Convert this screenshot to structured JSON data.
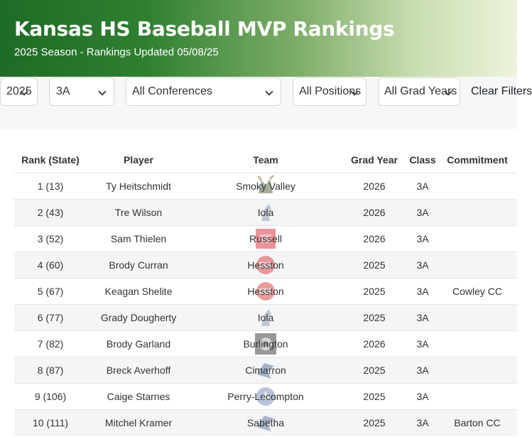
{
  "header": {
    "title": "Kansas HS Baseball MVP Rankings",
    "subtitle": "2025 Season - Rankings Updated 05/08/25"
  },
  "filters": {
    "year": "2025",
    "class": "3A",
    "conference": "All Conferences",
    "position": "All Positions",
    "grad_year": "All Grad Years",
    "clear_label": "Clear Filters"
  },
  "table": {
    "headers": [
      "Rank (State)",
      "Player",
      "Team",
      "Grad Year",
      "Class",
      "Commitment"
    ],
    "rows": [
      {
        "rank": "1 (13)",
        "player": "Ty Heitschmidt",
        "team": "Smoky Valley",
        "grad": "2026",
        "class": "3A",
        "commit": "",
        "logo": "viking-logo-icon"
      },
      {
        "rank": "2 (43)",
        "player": "Tre Wilson",
        "team": "Iola",
        "grad": "2026",
        "class": "3A",
        "commit": "",
        "logo": "mustang-logo-icon"
      },
      {
        "rank": "3 (52)",
        "player": "Sam Thielen",
        "team": "Russell",
        "grad": "2026",
        "class": "3A",
        "commit": "",
        "logo": "broncos-logo-icon"
      },
      {
        "rank": "4 (60)",
        "player": "Brody Curran",
        "team": "Hesston",
        "grad": "2025",
        "class": "3A",
        "commit": "",
        "logo": "swather-logo-icon"
      },
      {
        "rank": "5 (67)",
        "player": "Keagan Shelite",
        "team": "Hesston",
        "grad": "2025",
        "class": "3A",
        "commit": "Cowley CC",
        "logo": "swather-logo-icon"
      },
      {
        "rank": "6 (77)",
        "player": "Grady Dougherty",
        "team": "Iola",
        "grad": "2025",
        "class": "3A",
        "commit": "",
        "logo": "mustang-logo-icon"
      },
      {
        "rank": "7 (82)",
        "player": "Brody Garland",
        "team": "Burlington",
        "grad": "2026",
        "class": "3A",
        "commit": "",
        "logo": "wildcat-logo-icon"
      },
      {
        "rank": "8 (87)",
        "player": "Breck Averhoff",
        "team": "Cimarron",
        "grad": "2025",
        "class": "3A",
        "commit": "",
        "logo": "bluejay-logo-icon"
      },
      {
        "rank": "9 (106)",
        "player": "Caige Starnes",
        "team": "Perry-Lecompton",
        "grad": "2025",
        "class": "3A",
        "commit": "",
        "logo": "kaw-logo-icon"
      },
      {
        "rank": "10 (111)",
        "player": "Mitchel Kramer",
        "team": "Sabetha",
        "grad": "2025",
        "class": "3A",
        "commit": "Barton CC",
        "logo": "bluejay-logo-icon"
      }
    ]
  },
  "colors": {
    "header_start": "#1f6b26",
    "header_end": "#eef4dc",
    "link_green": "#2a6a2a"
  }
}
